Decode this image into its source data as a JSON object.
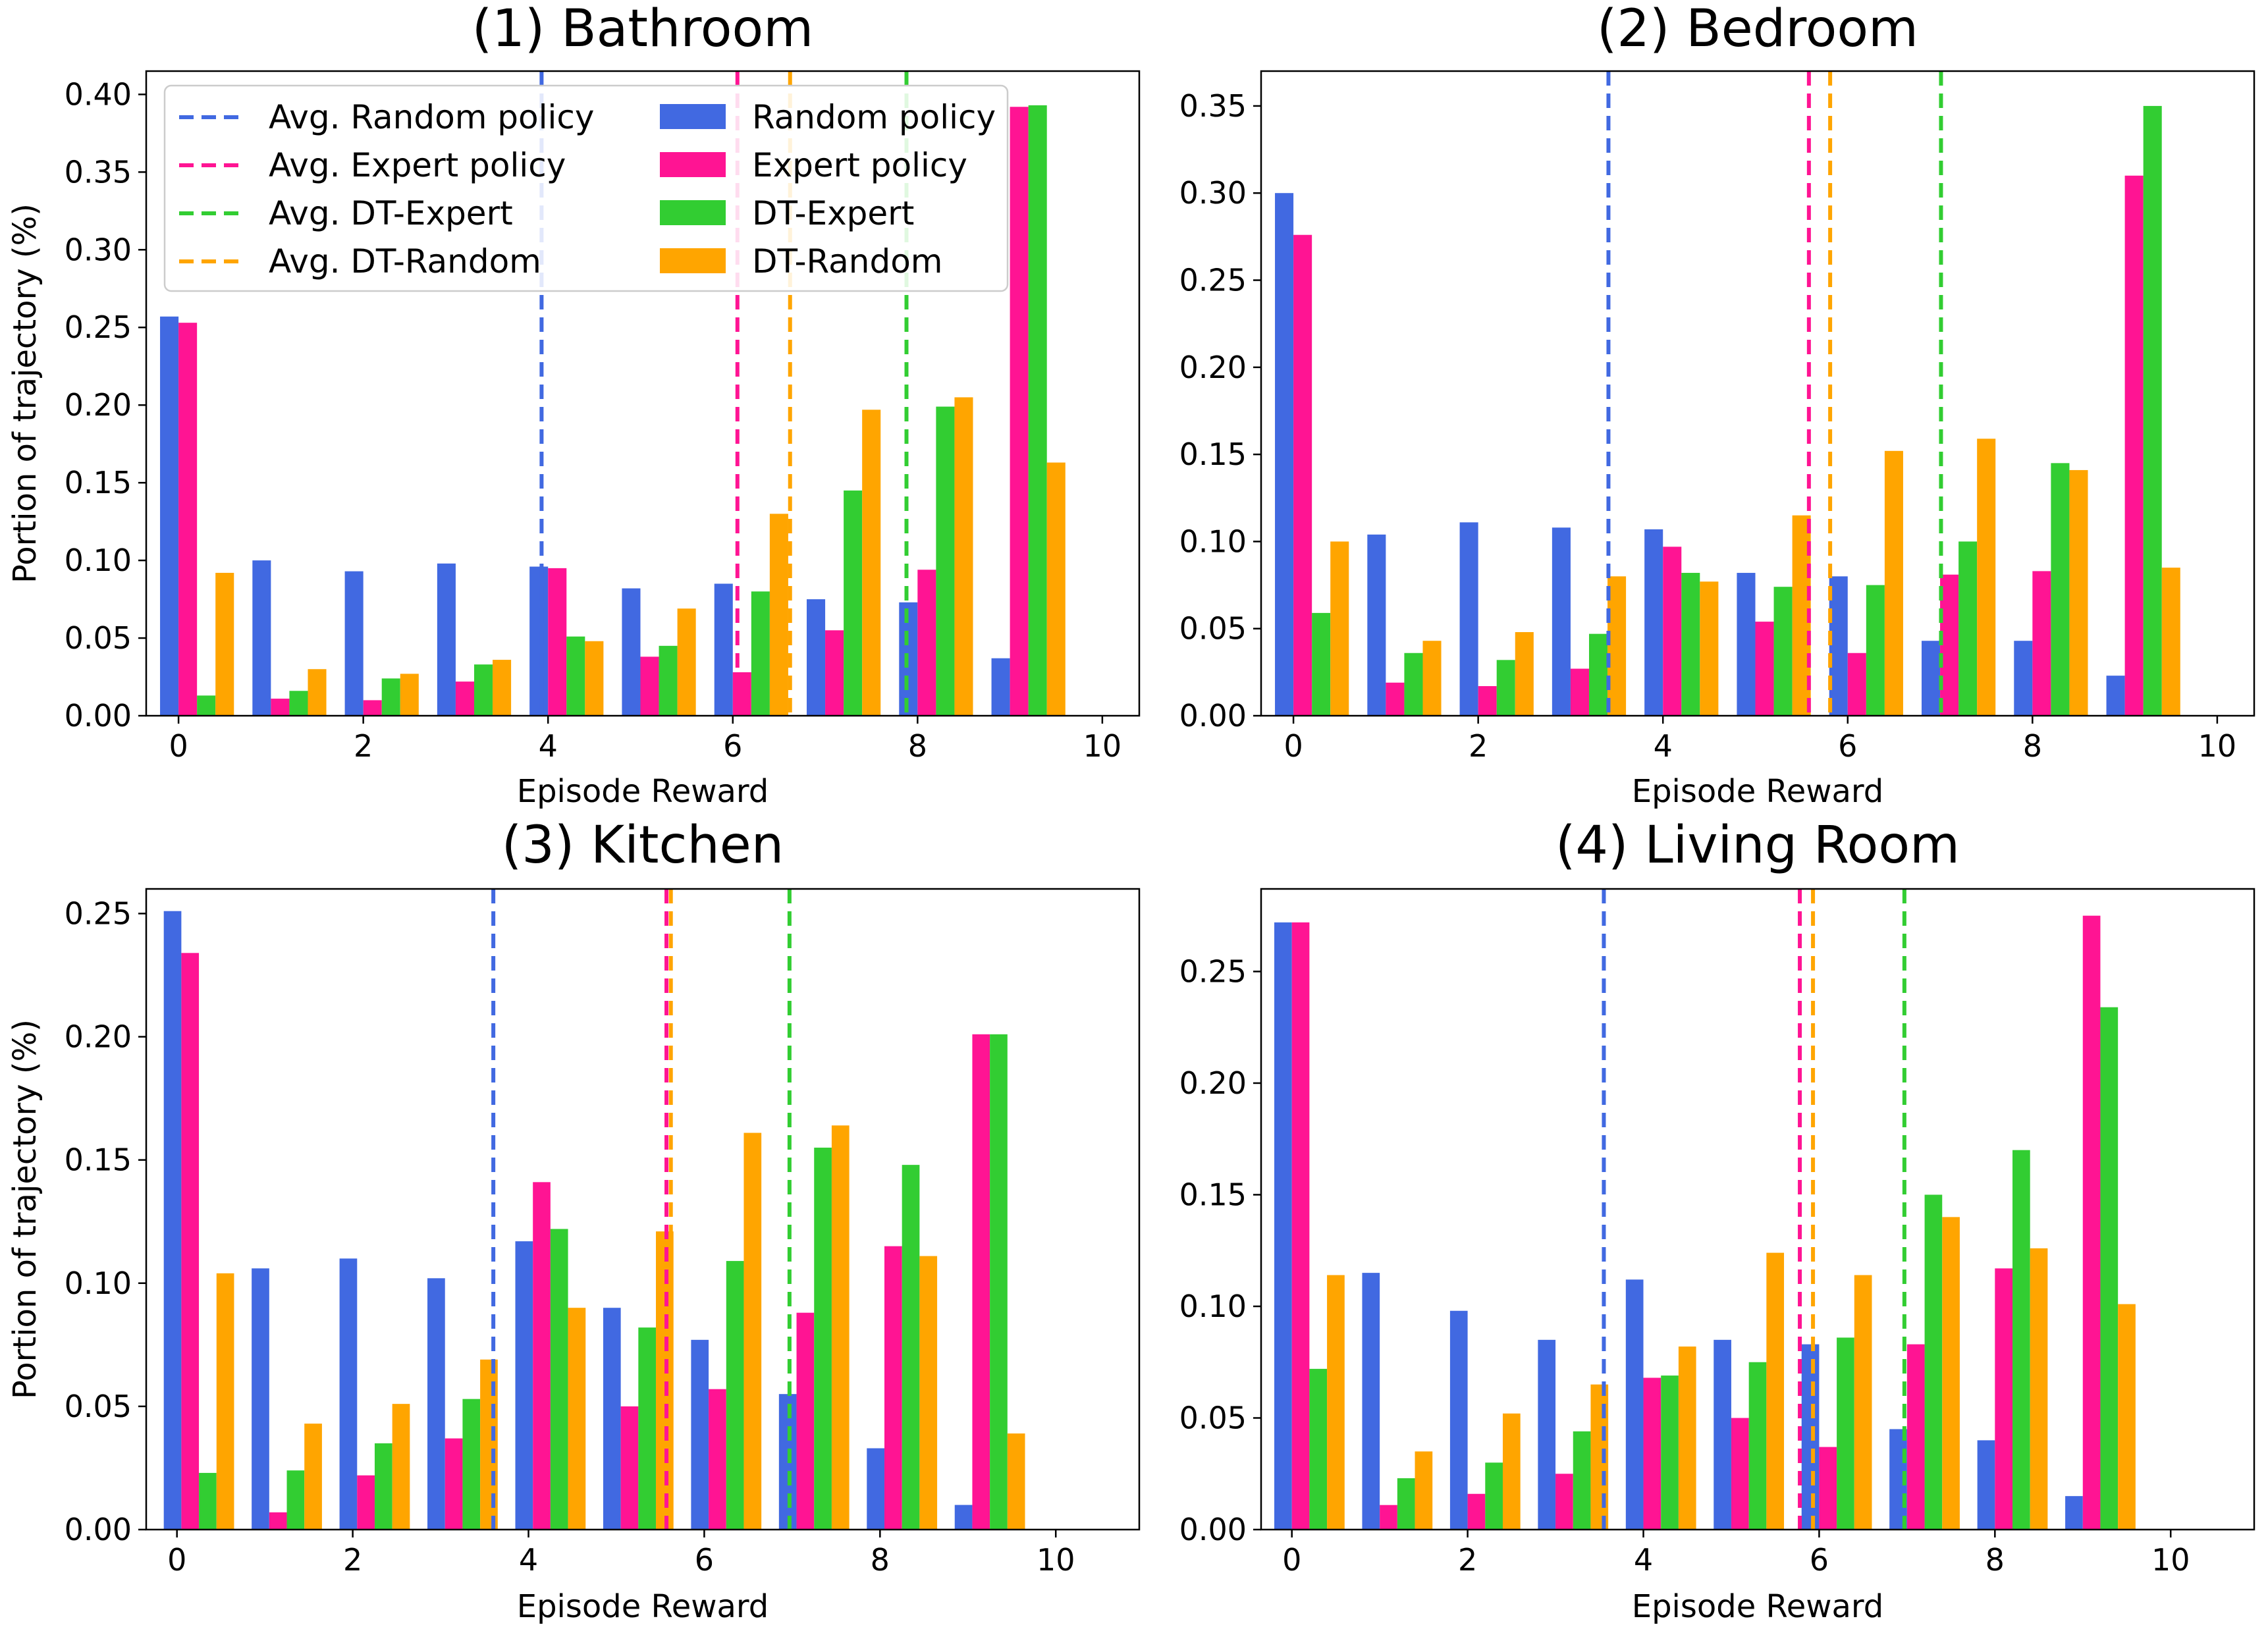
{
  "colors": {
    "random": "#4169e1",
    "expert": "#ff1493",
    "dt_expert": "#32cd32",
    "dt_random": "#ffa500"
  },
  "chart_data": [
    {
      "type": "bar",
      "title": "(1) Bathroom",
      "xlabel": "Episode Reward",
      "ylabel": "Portion of trajectory (%)",
      "xlim": [
        -0.35,
        10.4
      ],
      "ylim": [
        0,
        0.415
      ],
      "xticks": [
        0,
        2,
        4,
        6,
        8,
        10
      ],
      "xtick_labels": [
        "0",
        "2",
        "4",
        "6",
        "8",
        "10"
      ],
      "yticks": [
        0,
        0.05,
        0.1,
        0.15,
        0.2,
        0.25,
        0.3,
        0.35,
        0.4
      ],
      "ytick_labels": [
        "0.00",
        "0.05",
        "0.10",
        "0.15",
        "0.20",
        "0.25",
        "0.30",
        "0.35",
        "0.40"
      ],
      "categories": [
        0,
        1,
        2,
        3,
        4,
        5,
        6,
        7,
        8,
        9
      ],
      "series": [
        {
          "name": "Random policy",
          "key": "random",
          "values": [
            0.257,
            0.1,
            0.093,
            0.098,
            0.096,
            0.082,
            0.085,
            0.075,
            0.073,
            0.037
          ]
        },
        {
          "name": "Expert policy",
          "key": "expert",
          "values": [
            0.253,
            0.011,
            0.01,
            0.022,
            0.095,
            0.038,
            0.028,
            0.055,
            0.094,
            0.392
          ]
        },
        {
          "name": "DT-Expert",
          "key": "dt_expert",
          "values": [
            0.013,
            0.016,
            0.024,
            0.033,
            0.051,
            0.045,
            0.08,
            0.145,
            0.199,
            0.393
          ]
        },
        {
          "name": "DT-Random",
          "key": "dt_random",
          "values": [
            0.092,
            0.03,
            0.027,
            0.036,
            0.048,
            0.069,
            0.13,
            0.197,
            0.205,
            0.163
          ]
        }
      ],
      "avg_lines": [
        {
          "name": "Avg. Random policy",
          "key": "random",
          "x": 3.93
        },
        {
          "name": "Avg. Expert policy",
          "key": "expert",
          "x": 6.05
        },
        {
          "name": "Avg. DT-Expert",
          "key": "dt_expert",
          "x": 7.88
        },
        {
          "name": "Avg. DT-Random",
          "key": "dt_random",
          "x": 6.62
        }
      ],
      "legend": {
        "position": "top-left",
        "line_entries": [
          "Avg. Random policy",
          "Avg. Expert policy",
          "Avg. DT-Expert",
          "Avg. DT-Random"
        ],
        "bar_entries": [
          "Random policy",
          "Expert policy",
          "DT-Expert",
          "DT-Random"
        ]
      }
    },
    {
      "type": "bar",
      "title": "(2) Bedroom",
      "xlabel": "Episode Reward",
      "ylabel": "",
      "xlim": [
        -0.35,
        10.4
      ],
      "ylim": [
        0,
        0.37
      ],
      "xticks": [
        0,
        2,
        4,
        6,
        8,
        10
      ],
      "xtick_labels": [
        "0",
        "2",
        "4",
        "6",
        "8",
        "10"
      ],
      "yticks": [
        0,
        0.05,
        0.1,
        0.15,
        0.2,
        0.25,
        0.3,
        0.35
      ],
      "ytick_labels": [
        "0.00",
        "0.05",
        "0.10",
        "0.15",
        "0.20",
        "0.25",
        "0.30",
        "0.35"
      ],
      "categories": [
        0,
        1,
        2,
        3,
        4,
        5,
        6,
        7,
        8,
        9
      ],
      "series": [
        {
          "name": "Random policy",
          "key": "random",
          "values": [
            0.3,
            0.104,
            0.111,
            0.108,
            0.107,
            0.082,
            0.08,
            0.043,
            0.043,
            0.023
          ]
        },
        {
          "name": "Expert policy",
          "key": "expert",
          "values": [
            0.276,
            0.019,
            0.017,
            0.027,
            0.097,
            0.054,
            0.036,
            0.081,
            0.083,
            0.31
          ]
        },
        {
          "name": "DT-Expert",
          "key": "dt_expert",
          "values": [
            0.059,
            0.036,
            0.032,
            0.047,
            0.082,
            0.074,
            0.075,
            0.1,
            0.145,
            0.35
          ]
        },
        {
          "name": "DT-Random",
          "key": "dt_random",
          "values": [
            0.1,
            0.043,
            0.048,
            0.08,
            0.077,
            0.115,
            0.152,
            0.159,
            0.141,
            0.085
          ]
        }
      ],
      "avg_lines": [
        {
          "name": "Avg. Random policy",
          "key": "random",
          "x": 3.41
        },
        {
          "name": "Avg. Expert policy",
          "key": "expert",
          "x": 5.58
        },
        {
          "name": "Avg. DT-Expert",
          "key": "dt_expert",
          "x": 7.01
        },
        {
          "name": "Avg. DT-Random",
          "key": "dt_random",
          "x": 5.81
        }
      ]
    },
    {
      "type": "bar",
      "title": "(3) Kitchen",
      "xlabel": "Episode Reward",
      "ylabel": "Portion of trajectory (%)",
      "xlim": [
        -0.35,
        10.95
      ],
      "ylim": [
        0,
        0.26
      ],
      "xticks": [
        0,
        2,
        4,
        6,
        8,
        10
      ],
      "xtick_labels": [
        "0",
        "2",
        "4",
        "6",
        "8",
        "10"
      ],
      "yticks": [
        0,
        0.05,
        0.1,
        0.15,
        0.2,
        0.25
      ],
      "ytick_labels": [
        "0.00",
        "0.05",
        "0.10",
        "0.15",
        "0.20",
        "0.25"
      ],
      "categories": [
        0,
        1,
        2,
        3,
        4,
        5,
        6,
        7,
        8,
        9,
        10
      ],
      "series": [
        {
          "name": "Random policy",
          "key": "random",
          "values": [
            0.251,
            0.106,
            0.11,
            0.102,
            0.117,
            0.09,
            0.077,
            0.055,
            0.033,
            0.01,
            0.0
          ]
        },
        {
          "name": "Expert policy",
          "key": "expert",
          "values": [
            0.234,
            0.007,
            0.022,
            0.037,
            0.141,
            0.05,
            0.057,
            0.088,
            0.115,
            0.201,
            0.0
          ]
        },
        {
          "name": "DT-Expert",
          "key": "dt_expert",
          "values": [
            0.023,
            0.024,
            0.035,
            0.053,
            0.122,
            0.082,
            0.109,
            0.155,
            0.148,
            0.201,
            0.0
          ]
        },
        {
          "name": "DT-Random",
          "key": "dt_random",
          "values": [
            0.104,
            0.043,
            0.051,
            0.069,
            0.09,
            0.121,
            0.161,
            0.164,
            0.111,
            0.039,
            0.0
          ]
        }
      ],
      "bar_offset": 0.25,
      "avg_lines": [
        {
          "name": "Avg. Random policy",
          "key": "random",
          "x": 3.6
        },
        {
          "name": "Avg. Expert policy",
          "key": "expert",
          "x": 5.57
        },
        {
          "name": "Avg. DT-Expert",
          "key": "dt_expert",
          "x": 6.97
        },
        {
          "name": "Avg. DT-Random",
          "key": "dt_random",
          "x": 5.62
        }
      ]
    },
    {
      "type": "bar",
      "title": "(4) Living Room",
      "xlabel": "Episode Reward",
      "ylabel": "",
      "xlim": [
        -0.35,
        10.95
      ],
      "ylim": [
        0,
        0.287
      ],
      "xticks": [
        0,
        2,
        4,
        6,
        8,
        10
      ],
      "xtick_labels": [
        "0",
        "2",
        "4",
        "6",
        "8",
        "10"
      ],
      "yticks": [
        0,
        0.05,
        0.1,
        0.15,
        0.2,
        0.25
      ],
      "ytick_labels": [
        "0.00",
        "0.05",
        "0.10",
        "0.15",
        "0.20",
        "0.25"
      ],
      "categories": [
        0,
        1,
        2,
        3,
        4,
        5,
        6,
        7,
        8,
        9
      ],
      "series": [
        {
          "name": "Random policy",
          "key": "random",
          "values": [
            0.272,
            0.115,
            0.098,
            0.085,
            0.112,
            0.085,
            0.083,
            0.045,
            0.04,
            0.015
          ]
        },
        {
          "name": "Expert policy",
          "key": "expert",
          "values": [
            0.272,
            0.011,
            0.016,
            0.025,
            0.068,
            0.05,
            0.037,
            0.083,
            0.117,
            0.275
          ]
        },
        {
          "name": "DT-Expert",
          "key": "dt_expert",
          "values": [
            0.072,
            0.023,
            0.03,
            0.044,
            0.069,
            0.075,
            0.086,
            0.15,
            0.17,
            0.234
          ]
        },
        {
          "name": "DT-Random",
          "key": "dt_random",
          "values": [
            0.114,
            0.035,
            0.052,
            0.065,
            0.082,
            0.124,
            0.114,
            0.14,
            0.126,
            0.101
          ]
        }
      ],
      "avg_lines": [
        {
          "name": "Avg. Random policy",
          "key": "random",
          "x": 3.55
        },
        {
          "name": "Avg. Expert policy",
          "key": "expert",
          "x": 5.78
        },
        {
          "name": "Avg. DT-Expert",
          "key": "dt_expert",
          "x": 6.97
        },
        {
          "name": "Avg. DT-Random",
          "key": "dt_random",
          "x": 5.93
        }
      ]
    }
  ]
}
